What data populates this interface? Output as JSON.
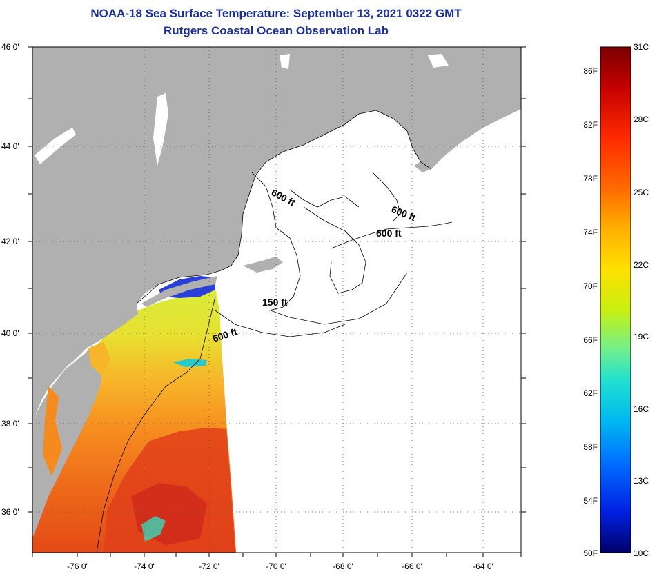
{
  "header": {
    "title": "NOAA-18 Sea Surface Temperature:  September 13, 2021 0322 GMT",
    "subtitle": "Rutgers Coastal Ocean Observation Lab"
  },
  "map": {
    "lat_labels": [
      "46 0'",
      "44 0'",
      "42 0'",
      "40 0'",
      "38 0'",
      "36 0'"
    ],
    "lon_labels": [
      "-76 0'",
      "-74 0'",
      "-72 0'",
      "-70 0'",
      "-68 0'",
      "-66 0'",
      "-64 0'"
    ],
    "contour_labels": [
      "600 ft",
      "600 ft",
      "600 ft",
      "150 ft",
      "600 ft"
    ],
    "colors": {
      "land": "#b0b0b0",
      "ocean_nodata": "#ffffff",
      "warm": "#f58a1e",
      "hot": "#e0401a",
      "mild": "#d8ec3a",
      "cool": "#2bc8c8",
      "cold": "#2a3fd8"
    }
  },
  "colorbar": {
    "fahrenheit": [
      "86F",
      "82F",
      "78F",
      "74F",
      "70F",
      "66F",
      "62F",
      "58F",
      "54F",
      "50F"
    ],
    "celsius": [
      "31C",
      "28C",
      "25C",
      "22C",
      "19C",
      "16C",
      "13C",
      "10C"
    ],
    "stops": [
      "#7a0000",
      "#c40000",
      "#ff2a00",
      "#ff6a00",
      "#ffb000",
      "#ffe000",
      "#d4f000",
      "#7ff07f",
      "#20e0d0",
      "#00b8f0",
      "#0070ff",
      "#0020e0",
      "#00006a"
    ]
  }
}
